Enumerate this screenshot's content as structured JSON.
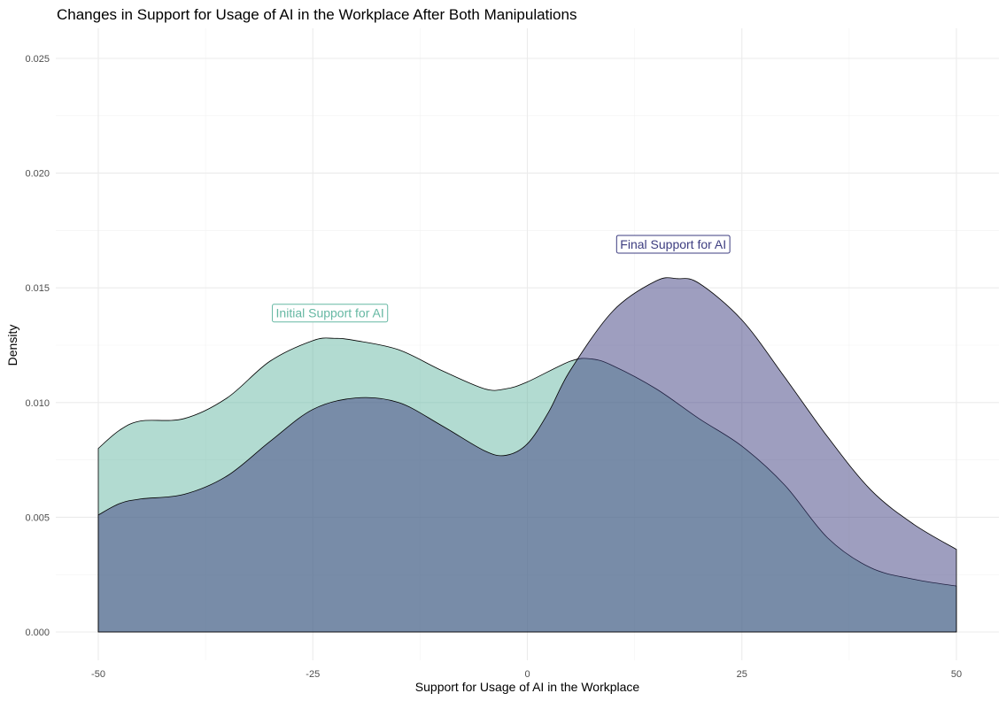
{
  "chart_data": {
    "type": "area",
    "title": "Changes in Support for Usage of AI in the Workplace After Both Manipulations",
    "xlabel": "Support for Usage of AI in the Workplace",
    "ylabel": "Density",
    "xlim": [
      -50,
      50
    ],
    "ylim": [
      0,
      0.025
    ],
    "x_ticks": [
      -50,
      -25,
      0,
      25,
      50
    ],
    "x_tick_labels": [
      "-50",
      "-25",
      "0",
      "25",
      "50"
    ],
    "y_ticks": [
      0,
      0.005,
      0.01,
      0.015,
      0.02,
      0.025
    ],
    "y_tick_labels": [
      "0.000",
      "0.005",
      "0.010",
      "0.015",
      "0.020",
      "0.025"
    ],
    "grid": true,
    "series": [
      {
        "name": "Initial Support for AI",
        "color": "#66b8a3",
        "x": [
          -50,
          -47.5,
          -45,
          -40,
          -35,
          -30,
          -25,
          -22.5,
          -20,
          -15,
          -10,
          -5,
          -2.5,
          0,
          5,
          7.5,
          10,
          15,
          20,
          25,
          30,
          35,
          40,
          45,
          50
        ],
        "values": [
          0.008,
          0.0088,
          0.0092,
          0.0093,
          0.0102,
          0.0118,
          0.0127,
          0.0128,
          0.0127,
          0.0123,
          0.0114,
          0.0106,
          0.0106,
          0.0109,
          0.0118,
          0.0119,
          0.0116,
          0.0106,
          0.0093,
          0.0081,
          0.0064,
          0.0041,
          0.0028,
          0.0023,
          0.002
        ]
      },
      {
        "name": "Final Support for AI",
        "color": "#3d3d80",
        "x": [
          -50,
          -47.5,
          -45,
          -40,
          -35,
          -30,
          -25,
          -20,
          -15,
          -10,
          -5,
          -2.5,
          0,
          2.5,
          5,
          10,
          15,
          17.5,
          20,
          25,
          30,
          35,
          40,
          45,
          50
        ],
        "values": [
          0.0051,
          0.0056,
          0.0058,
          0.006,
          0.0068,
          0.0083,
          0.0097,
          0.0102,
          0.01,
          0.009,
          0.0079,
          0.0077,
          0.0082,
          0.0096,
          0.0114,
          0.014,
          0.0153,
          0.0154,
          0.0152,
          0.0136,
          0.0111,
          0.0085,
          0.0062,
          0.0047,
          0.0036
        ]
      }
    ],
    "annotations": [
      {
        "text": "Initial Support for AI",
        "x": -23,
        "y": 0.0139,
        "color": "#66b8a3"
      },
      {
        "text": "Final Support for AI",
        "x": 17,
        "y": 0.0169,
        "color": "#3d3d80"
      }
    ]
  }
}
